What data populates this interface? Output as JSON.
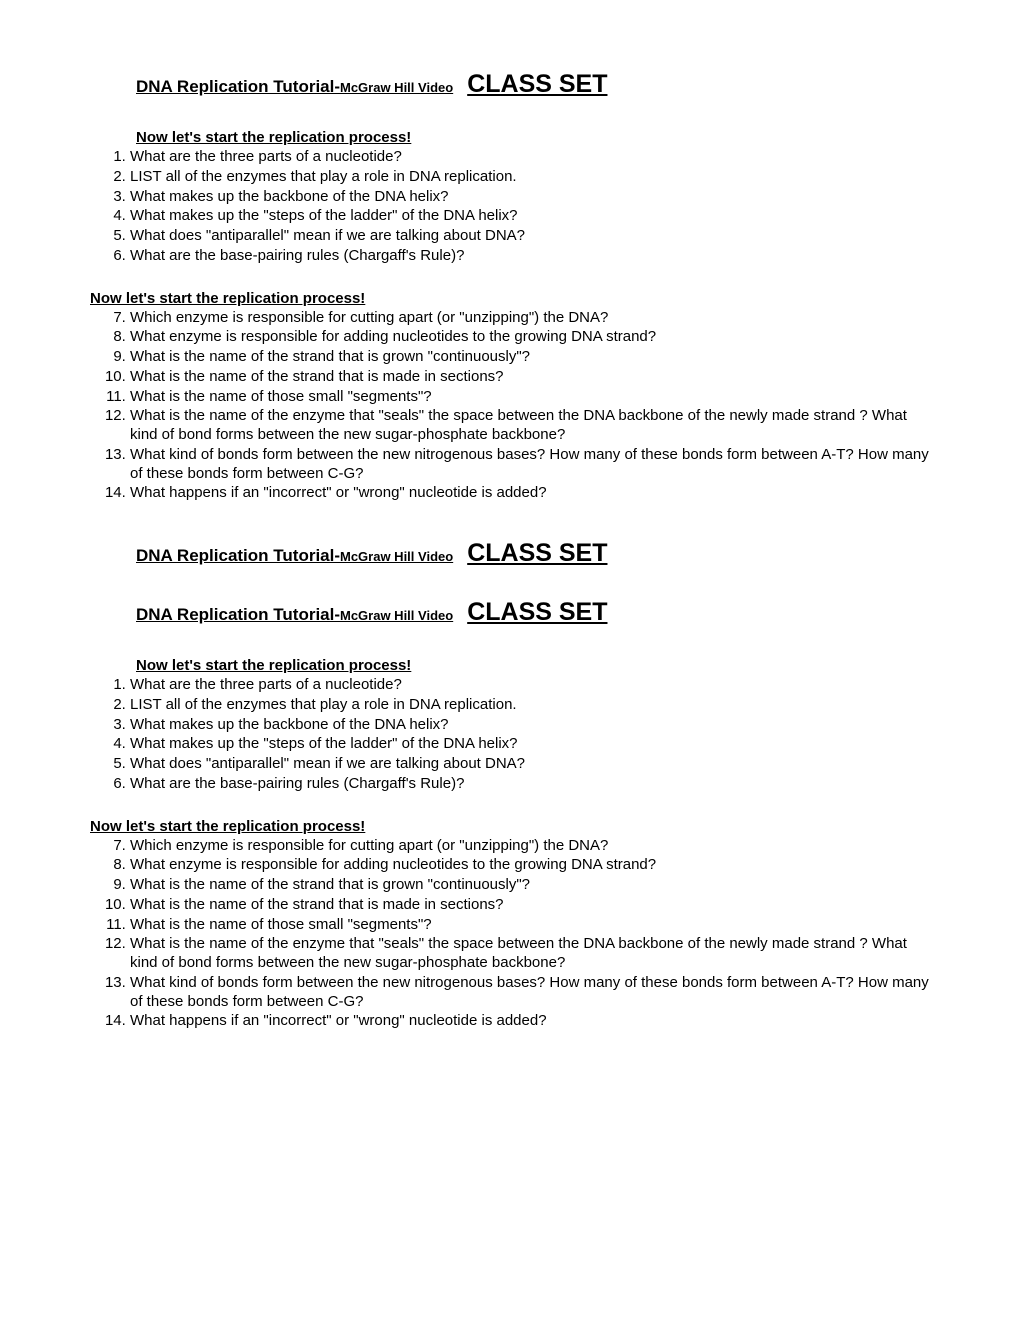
{
  "title_main": "DNA Replication Tutorial-",
  "title_sub": "McGraw Hill Video",
  "title_classset": "CLASS SET",
  "section_heading": "Now let's start the replication process!  ",
  "list1": {
    "q1": "What are the three parts of a nucleotide?",
    "q2": "LIST all of the enzymes that play a role in DNA replication.",
    "q3": "What makes up the backbone of the DNA helix?",
    "q4": "What makes up the \"steps of the ladder\" of the DNA helix?",
    "q5": "What does \"antiparallel\" mean if we are talking about DNA?",
    "q6": "What are the base-pairing rules (Chargaff's Rule)?"
  },
  "list2": {
    "q7": "Which enzyme is responsible for cutting apart (or \"unzipping\") the DNA?",
    "q8": "What enzyme is responsible for adding nucleotides to the growing DNA strand?",
    "q9": "What is the name of the strand that is grown \"continuously\"?",
    "q10": "What is the name of the strand that is made in sections?",
    "q11": "What is the name of those small \"segments\"?",
    "q12": "What is the name of the enzyme that \"seals\" the space between the DNA backbone of the newly made strand ? What kind of bond forms between the new sugar-phosphate backbone?",
    "q13": "What kind of bonds form between the new nitrogenous bases?   How many of these bonds form between A-T?  How many of these bonds form between C-G?",
    "q14": "What happens if an \"incorrect\" or \"wrong\" nucleotide is added?"
  }
}
